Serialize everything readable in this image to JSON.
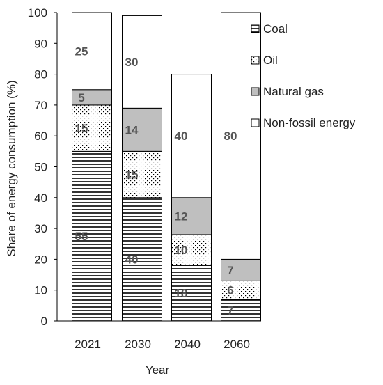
{
  "chart_data": {
    "type": "bar",
    "stacked": true,
    "categories": [
      "2021",
      "2030",
      "2040",
      "2060"
    ],
    "series": [
      {
        "name": "Coal",
        "pattern": "horizontal-lines",
        "values": [
          55,
          40,
          18,
          7
        ],
        "labels": [
          "55",
          "40",
          "18",
          "7"
        ]
      },
      {
        "name": "Oil",
        "pattern": "dots",
        "values": [
          15,
          15,
          10,
          6
        ],
        "labels": [
          "15",
          "15",
          "10",
          "6"
        ]
      },
      {
        "name": "Natural gas",
        "color": "#bfbfbf",
        "values": [
          5,
          14,
          12,
          7
        ],
        "labels": [
          "5",
          "14",
          "12",
          "7"
        ]
      },
      {
        "name": "Non-fossil energy",
        "color": "#ffffff",
        "values": [
          25,
          30,
          40,
          80
        ],
        "labels": [
          "25",
          "30",
          "40",
          "80"
        ]
      }
    ],
    "xlabel": "Year",
    "ylabel": "Share of energy consumption (%)",
    "ylim": [
      0,
      100
    ],
    "yticks": [
      "0",
      "10",
      "20",
      "30",
      "40",
      "50",
      "60",
      "70",
      "80",
      "90",
      "100"
    ],
    "grid": false,
    "legend_position": "right"
  }
}
